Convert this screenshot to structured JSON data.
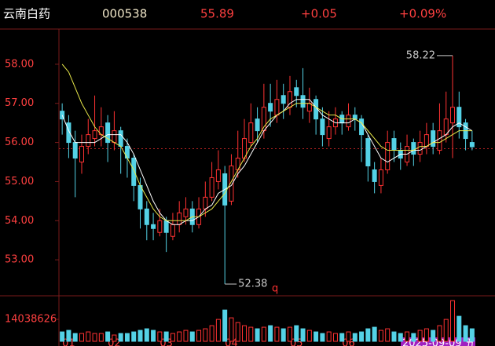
{
  "chart_data": {
    "type": "candlestick",
    "header": {
      "name": "云南白药",
      "code": "000538",
      "price": "55.89",
      "change": "+0.05",
      "change_pct": "+0.09%"
    },
    "categories": [
      "01",
      null,
      null,
      null,
      null,
      null,
      null,
      "02",
      null,
      null,
      null,
      null,
      null,
      null,
      null,
      "03",
      null,
      null,
      null,
      null,
      null,
      null,
      null,
      null,
      null,
      "04",
      null,
      null,
      null,
      null,
      null,
      null,
      null,
      null,
      null,
      "05",
      null,
      null,
      null,
      null,
      null,
      null,
      null,
      "06",
      null,
      null,
      null,
      null,
      null,
      null,
      null,
      null,
      null,
      null,
      null,
      null,
      null,
      null,
      null,
      null,
      null,
      null,
      null,
      null
    ],
    "cursor_label": "2025-09-09 五",
    "open": [
      56.8,
      56.5,
      56.0,
      55.5,
      55.9,
      56.1,
      56.2,
      56.5,
      56.0,
      56.3,
      55.9,
      55.6,
      54.9,
      54.3,
      53.9,
      53.7,
      54.0,
      53.6,
      53.9,
      54.1,
      54.3,
      53.9,
      54.3,
      54.6,
      55.0,
      55.2,
      54.5,
      55.3,
      55.6,
      56.0,
      56.6,
      56.3,
      57.0,
      56.7,
      57.2,
      56.9,
      57.4,
      57.2,
      56.8,
      57.1,
      56.6,
      56.1,
      56.4,
      56.7,
      56.4,
      56.7,
      56.6,
      56.1,
      55.3,
      54.9,
      55.3,
      56.1,
      55.8,
      55.5,
      56.0,
      55.7,
      55.9,
      56.3,
      55.8,
      56.2,
      56.5,
      56.9,
      56.5,
      56.0
    ],
    "high": [
      57.0,
      56.7,
      56.3,
      56.2,
      56.6,
      57.2,
      56.9,
      56.7,
      56.8,
      56.4,
      56.1,
      55.7,
      55.1,
      54.5,
      54.2,
      54.3,
      54.1,
      54.2,
      54.5,
      54.6,
      54.5,
      54.6,
      55.0,
      55.5,
      55.8,
      55.4,
      55.7,
      56.3,
      56.6,
      57.0,
      56.9,
      57.5,
      57.5,
      57.6,
      57.5,
      57.7,
      57.6,
      57.9,
      57.4,
      57.2,
      56.9,
      56.8,
      56.9,
      56.8,
      57.0,
      56.9,
      56.7,
      56.2,
      55.5,
      55.6,
      56.3,
      56.3,
      56.0,
      56.2,
      56.1,
      56.3,
      56.5,
      56.5,
      57.0,
      57.3,
      58.22,
      57.3,
      56.6,
      56.3
    ],
    "low": [
      56.2,
      55.6,
      54.6,
      55.2,
      55.7,
      55.9,
      55.9,
      55.5,
      55.8,
      55.2,
      55.1,
      54.5,
      53.8,
      53.5,
      53.5,
      53.6,
      53.2,
      53.5,
      53.7,
      53.9,
      53.7,
      53.8,
      54.1,
      54.5,
      54.8,
      52.38,
      54.4,
      55.1,
      55.5,
      55.9,
      56.0,
      56.1,
      56.4,
      56.5,
      56.6,
      56.7,
      56.9,
      56.6,
      56.5,
      56.2,
      55.9,
      55.9,
      56.2,
      56.2,
      56.3,
      56.3,
      55.5,
      55.0,
      54.7,
      54.7,
      55.2,
      55.5,
      55.3,
      55.4,
      55.4,
      55.5,
      55.7,
      55.7,
      55.7,
      56.0,
      55.6,
      56.1,
      55.8,
      55.8
    ],
    "close": [
      56.6,
      56.0,
      55.6,
      55.9,
      56.2,
      56.3,
      56.4,
      56.0,
      56.3,
      55.9,
      55.6,
      54.9,
      54.3,
      53.9,
      53.8,
      54.0,
      53.7,
      53.9,
      54.2,
      54.3,
      53.9,
      54.3,
      54.6,
      55.1,
      55.3,
      54.4,
      55.4,
      55.6,
      56.1,
      56.5,
      56.3,
      56.9,
      56.8,
      57.1,
      57.0,
      57.3,
      57.2,
      56.9,
      57.0,
      56.6,
      56.2,
      56.4,
      56.6,
      56.5,
      56.7,
      56.6,
      56.2,
      55.4,
      55.0,
      55.3,
      56.0,
      55.8,
      55.6,
      55.9,
      55.7,
      56.0,
      56.2,
      55.9,
      56.3,
      56.6,
      56.9,
      56.4,
      56.1,
      55.89
    ],
    "series": [
      {
        "color": "#ffffff",
        "values": [
          56.7,
          56.3,
          56.0,
          56.0,
          56.0,
          56.0,
          56.1,
          56.2,
          56.2,
          56.2,
          56.0,
          55.7,
          55.3,
          54.9,
          54.5,
          54.2,
          54.0,
          53.9,
          53.9,
          54.0,
          54.0,
          54.1,
          54.3,
          54.4,
          54.7,
          54.8,
          54.9,
          55.2,
          55.4,
          55.7,
          56.0,
          56.3,
          56.5,
          56.7,
          56.8,
          57.0,
          57.1,
          57.1,
          57.1,
          56.9,
          56.7,
          56.6,
          56.5,
          56.5,
          56.5,
          56.6,
          56.5,
          56.2,
          55.9,
          55.6,
          55.5,
          55.6,
          55.7,
          55.7,
          55.8,
          55.8,
          55.9,
          56.0,
          56.1,
          56.2,
          56.4,
          56.5,
          56.4,
          56.3
        ]
      },
      {
        "color": "#e8e84a",
        "values": [
          58.0,
          57.8,
          57.4,
          57.0,
          56.7,
          56.4,
          56.2,
          56.1,
          56.0,
          55.9,
          55.6,
          55.3,
          54.9,
          54.6,
          54.3,
          54.1,
          54.0,
          54.0,
          54.0,
          54.0,
          54.1,
          54.1,
          54.2,
          54.3,
          54.5,
          54.7,
          55.0,
          55.3,
          55.6,
          55.9,
          56.1,
          56.4,
          56.6,
          56.7,
          56.8,
          56.9,
          57.0,
          57.0,
          57.0,
          56.9,
          56.8,
          56.7,
          56.7,
          56.6,
          56.6,
          56.6,
          56.5,
          56.3,
          56.1,
          55.9,
          55.8,
          55.8,
          55.8,
          55.8,
          55.8,
          55.9,
          55.9,
          56.0,
          56.0,
          56.1,
          56.2,
          56.3,
          56.3,
          56.3
        ]
      }
    ],
    "up_color": "#ff3232",
    "down_color": "#54d2e6",
    "ylim": [
      52.12,
      58.84
    ],
    "yticks": [
      {
        "value": 53,
        "label": "53.00"
      },
      {
        "value": 54,
        "label": "54.00"
      },
      {
        "value": 55,
        "label": "55.00"
      },
      {
        "value": 56,
        "label": "56.00"
      },
      {
        "value": 57,
        "label": "57.00"
      },
      {
        "value": 58,
        "label": "58.00"
      }
    ],
    "ref_line": 55.84,
    "marker_text": "q",
    "volume": [
      6000000,
      7000000,
      5000000,
      5000000,
      6000000,
      5000000,
      5000000,
      6000000,
      4000000,
      5000000,
      5000000,
      6000000,
      7000000,
      8000000,
      7000000,
      6000000,
      6000000,
      5000000,
      6000000,
      7000000,
      6000000,
      7000000,
      8000000,
      10000000,
      14000000,
      20000000,
      15000000,
      12000000,
      10000000,
      9000000,
      8000000,
      9000000,
      10000000,
      9000000,
      8000000,
      9000000,
      10000000,
      8000000,
      7000000,
      6000000,
      5000000,
      6000000,
      5000000,
      5000000,
      6000000,
      5000000,
      6000000,
      8000000,
      9000000,
      7000000,
      8000000,
      6000000,
      5000000,
      6000000,
      5000000,
      7000000,
      8000000,
      7000000,
      10000000,
      14000000,
      26000000,
      16000000,
      10000000,
      8000000
    ],
    "vol_ylim": [
      0,
      27600000
    ],
    "vol_yticks": [
      14038626
    ]
  }
}
